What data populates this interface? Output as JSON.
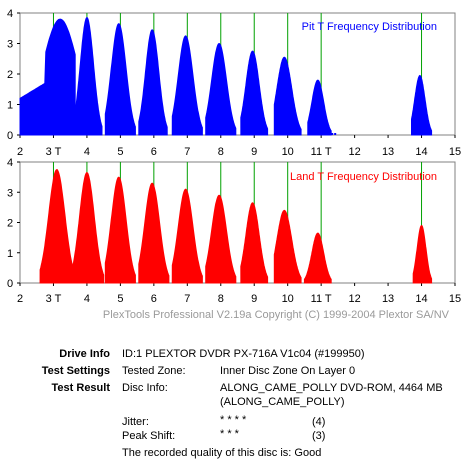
{
  "chart_data": [
    {
      "type": "area",
      "title": "Pit T Frequency Distribution",
      "color": "#0000ff",
      "marker_color": "#00a000",
      "xlim": [
        2,
        15
      ],
      "ylim": [
        0,
        4
      ],
      "x_ticks": [
        "2",
        "3 T",
        "4",
        "5",
        "6",
        "7",
        "8",
        "9",
        "10",
        "11 T",
        "12",
        "13",
        "14",
        "15"
      ],
      "y_ticks": [
        "0",
        "1",
        "2",
        "3",
        "4"
      ],
      "markers_x": [
        3,
        4,
        5,
        6,
        7,
        8,
        9,
        10,
        11,
        14
      ],
      "series": [
        {
          "center": 3.2,
          "peak": 3.8,
          "start": 2.0,
          "end": 3.65
        },
        {
          "center": 4.0,
          "peak": 3.85,
          "start": 3.65,
          "end": 4.45
        },
        {
          "center": 4.95,
          "peak": 3.65,
          "start": 4.55,
          "end": 5.45
        },
        {
          "center": 5.95,
          "peak": 3.45,
          "start": 5.55,
          "end": 6.4
        },
        {
          "center": 6.95,
          "peak": 3.25,
          "start": 6.55,
          "end": 7.45
        },
        {
          "center": 7.95,
          "peak": 3.0,
          "start": 7.55,
          "end": 8.45
        },
        {
          "center": 8.95,
          "peak": 2.75,
          "start": 8.6,
          "end": 9.4
        },
        {
          "center": 9.9,
          "peak": 2.55,
          "start": 9.6,
          "end": 10.4
        },
        {
          "center": 10.9,
          "peak": 1.8,
          "start": 10.6,
          "end": 11.3
        },
        {
          "center": 13.95,
          "peak": 1.95,
          "start": 13.7,
          "end": 14.3
        }
      ],
      "baseline_dots_end": 11.45
    },
    {
      "type": "area",
      "title": "Land T Frequency Distribution",
      "color": "#ff0000",
      "marker_color": "#00a000",
      "xlim": [
        2,
        15
      ],
      "ylim": [
        0,
        4
      ],
      "x_ticks": [
        "2",
        "3 T",
        "4",
        "5",
        "6",
        "7",
        "8",
        "9",
        "10",
        "11 T",
        "12",
        "13",
        "14",
        "15"
      ],
      "y_ticks": [
        "0",
        "1",
        "2",
        "3",
        "4"
      ],
      "markers_x": [
        3,
        4,
        5,
        6,
        7,
        8,
        9,
        10,
        11,
        14
      ],
      "series": [
        {
          "center": 3.1,
          "peak": 3.75,
          "start": 2.6,
          "end": 3.65
        },
        {
          "center": 4.0,
          "peak": 3.65,
          "start": 3.55,
          "end": 4.5
        },
        {
          "center": 4.95,
          "peak": 3.5,
          "start": 4.55,
          "end": 5.45
        },
        {
          "center": 5.95,
          "peak": 3.3,
          "start": 5.55,
          "end": 6.45
        },
        {
          "center": 6.95,
          "peak": 3.1,
          "start": 6.55,
          "end": 7.45
        },
        {
          "center": 7.95,
          "peak": 2.9,
          "start": 7.55,
          "end": 8.45
        },
        {
          "center": 8.95,
          "peak": 2.65,
          "start": 8.6,
          "end": 9.4
        },
        {
          "center": 9.9,
          "peak": 2.4,
          "start": 9.6,
          "end": 10.4
        },
        {
          "center": 10.9,
          "peak": 1.65,
          "start": 10.5,
          "end": 11.3
        },
        {
          "center": 14.0,
          "peak": 1.9,
          "start": 13.75,
          "end": 14.3
        }
      ],
      "baseline_dots_end": 0
    }
  ],
  "copyright": "PlexTools Professional V2.19a Copyright (C) 1999-2004 Plextor SA/NV",
  "info": {
    "drive_label": "Drive Info",
    "drive_value": "ID:1 PLEXTOR DVDR PX-716A V1c04 (#199950)",
    "settings_label": "Test Settings",
    "settings_key": "Tested Zone:",
    "settings_value": "Inner Disc Zone On Layer 0",
    "result_label": "Test Result",
    "disc_key": "Disc Info:",
    "disc_value_1": "ALONG_CAME_POLLY DVD-ROM, 4464 MB",
    "disc_value_2": "(ALONG_CAME_POLLY)",
    "jitter_key": "Jitter:",
    "jitter_stars": "* * * *",
    "jitter_score": "(4)",
    "peak_key": "Peak Shift:",
    "peak_stars": "* * *",
    "peak_score": "(3)",
    "quality_text": "The recorded quality of this disc is: Good"
  }
}
